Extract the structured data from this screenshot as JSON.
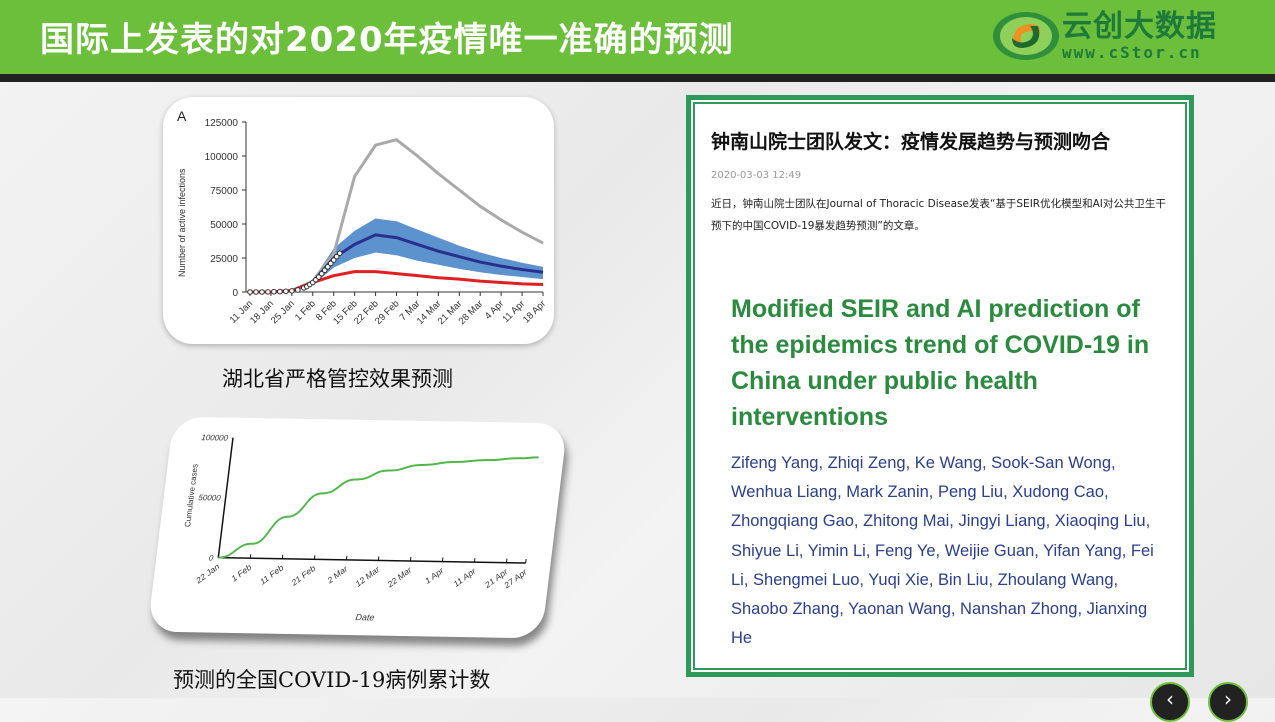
{
  "header": {
    "title": "国际上发表的对2020年疫情唯一准确的预测",
    "logo_cn": "云创大数据",
    "logo_url": "www.cStor.cn",
    "colors": {
      "bar": "#6cbf3a",
      "logo": "#1e7a3a"
    }
  },
  "chart_data": [
    {
      "type": "line",
      "panel_label": "A",
      "ylabel": "Number of active infections",
      "xlabel": "",
      "ylim": [
        0,
        125000
      ],
      "yticks": [
        "0",
        "25000",
        "50000",
        "75000",
        "100000",
        "125000"
      ],
      "categories": [
        "11 Jan",
        "18 Jan",
        "25 Jan",
        "1 Feb",
        "8 Feb",
        "15 Feb",
        "22 Feb",
        "29 Feb",
        "7 Mar",
        "14 Mar",
        "21 Mar",
        "28 Mar",
        "4 Apr",
        "11 Apr",
        "18 Apr"
      ],
      "series": [
        {
          "color": "#a9a9a9",
          "values": [
            0,
            0,
            1000,
            8000,
            28000,
            85000,
            108000,
            112000,
            100000,
            87000,
            75000,
            63000,
            53000,
            44000,
            36000
          ]
        },
        {
          "color": "#2a2f8f",
          "values": [
            0,
            0,
            1000,
            7000,
            25000,
            35000,
            42000,
            40000,
            35000,
            30000,
            26000,
            22000,
            19000,
            16500,
            14500
          ]
        },
        {
          "color": "#e02020",
          "values": [
            0,
            0,
            1000,
            7000,
            12000,
            15000,
            15000,
            13500,
            12000,
            10500,
            9500,
            8000,
            7000,
            6000,
            5500
          ]
        }
      ],
      "band": {
        "color": "#4a86c8",
        "lower": [
          0,
          0,
          800,
          5000,
          18000,
          25000,
          29000,
          27000,
          23000,
          20000,
          17000,
          14500,
          12500,
          11000,
          9500
        ],
        "upper": [
          0,
          0,
          1200,
          9000,
          32000,
          45000,
          54000,
          52000,
          46000,
          40000,
          34000,
          29000,
          25000,
          21500,
          18500
        ]
      },
      "observed": {
        "x_days": [
          0,
          2,
          4,
          6,
          8,
          10,
          12,
          14,
          16,
          18,
          19,
          20,
          21,
          22,
          23,
          24,
          25,
          26,
          27,
          28,
          29,
          30
        ],
        "values": [
          0,
          0,
          0,
          100,
          200,
          300,
          500,
          800,
          1500,
          3000,
          4000,
          5500,
          7000,
          9000,
          11000,
          13500,
          16000,
          18500,
          21000,
          23500,
          26000,
          28500
        ]
      }
    },
    {
      "type": "line",
      "ylabel": "Cumulative cases",
      "xlabel": "Date",
      "ylim": [
        0,
        100000
      ],
      "yticks": [
        "0",
        "50000",
        "100000"
      ],
      "categories": [
        "22 Jan",
        "1 Feb",
        "11 Feb",
        "21 Feb",
        "2 Mar",
        "12 Mar",
        "22 Mar",
        "1 Apr",
        "11 Apr",
        "21 Apr",
        "27 Apr"
      ],
      "x_days": [
        0,
        10,
        20,
        30,
        40,
        50,
        60,
        70,
        80,
        90,
        96
      ],
      "series": [
        {
          "color": "#4fb848",
          "values": [
            0,
            12000,
            35000,
            55000,
            67000,
            75000,
            80000,
            83000,
            85000,
            87000,
            88000
          ]
        }
      ]
    }
  ],
  "captions": {
    "chart1": "湖北省严格管控效果预测",
    "chart2": "预测的全国COVID-19病例累计数"
  },
  "article": {
    "headline": "钟南山院士团队发文：疫情发展趋势与预测吻合",
    "date": "2020-03-03 12:49",
    "body": "近日，钟南山院士团队在Journal of Thoracic Disease发表“基于SEIR优化模型和AI对公共卫生干预下的中国COVID-19暴发趋势预测”的文章。",
    "paper_title": "Modified SEIR and AI prediction of the epidemics trend of COVID-19 in China under public health interventions",
    "authors": "Zifeng Yang, Zhiqi Zeng, Ke Wang, Sook-San Wong, Wenhua Liang, Mark Zanin, Peng Liu, Xudong Cao, Zhongqiang Gao, Zhitong Mai, Jingyi Liang, Xiaoqing Liu, Shiyue Li, Yimin Li, Feng Ye, Weijie Guan, Yifan Yang, Fei Li, Shengmei Luo, Yuqi Xie, Bin Liu, Zhoulang Wang, Shaobo Zhang, Yaonan Wang, Nanshan Zhong, Jianxing He"
  },
  "nav": {
    "prev_icon": "arrow-left-icon",
    "next_icon": "arrow-right-icon",
    "prev": "‹",
    "next": "›"
  }
}
